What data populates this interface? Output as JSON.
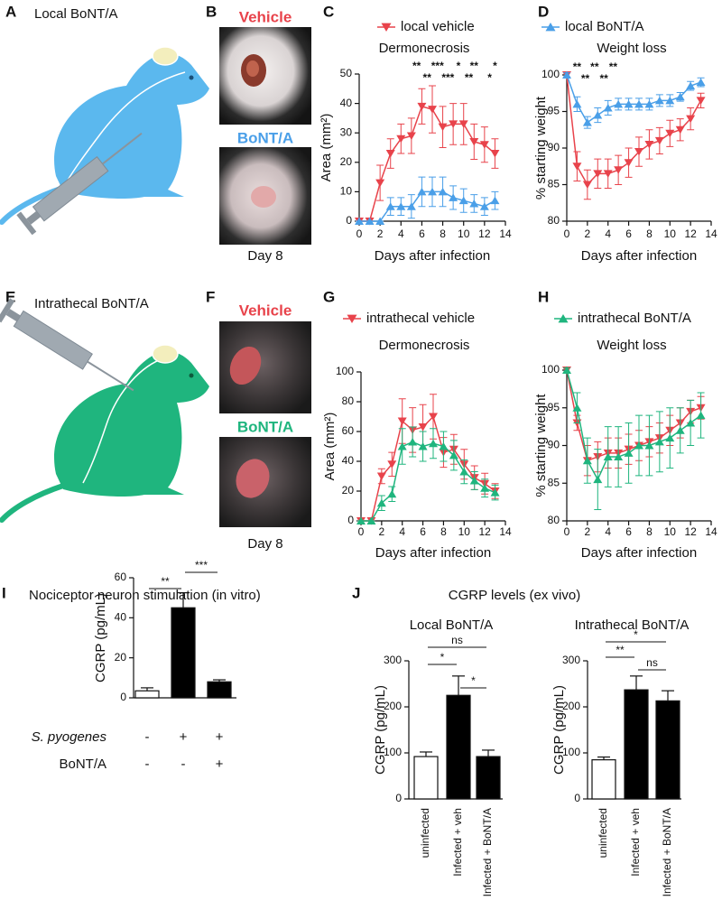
{
  "panel_labels": [
    "A",
    "B",
    "C",
    "D",
    "E",
    "F",
    "G",
    "H",
    "I",
    "J"
  ],
  "schematics": [
    {
      "title": "Local BoNT/A"
    },
    {
      "title": "Intrathecal BoNT/A"
    }
  ],
  "photos": [
    {
      "top": "Vehicle",
      "bottom": "BoNT/A",
      "caption": "Day 8"
    },
    {
      "top": "Vehicle",
      "bottom": "BoNT/A",
      "caption": "Day 8"
    }
  ],
  "j_title": "CGRP levels (ex vivo)",
  "chart_data": [
    {
      "type": "line",
      "title": "Dermonecrosis",
      "xlabel": "Days after infection",
      "ylabel": "Area (mm²)",
      "x": [
        0,
        1,
        2,
        3,
        4,
        5,
        6,
        7,
        8,
        9,
        10,
        11,
        12,
        13
      ],
      "xlim": [
        0,
        14
      ],
      "xticks": [
        0,
        2,
        4,
        6,
        8,
        10,
        12,
        14
      ],
      "ylim": [
        0,
        50
      ],
      "yticks": [
        0,
        10,
        20,
        30,
        40,
        50
      ],
      "series": [
        {
          "name": "local vehicle",
          "color": "#e8434b",
          "marker": "triangle-down",
          "values": [
            0,
            0,
            13,
            23,
            28,
            29,
            39,
            38,
            32,
            33,
            33,
            27,
            26,
            23
          ],
          "errors": [
            1,
            1,
            6,
            5,
            5,
            6,
            6,
            8,
            7,
            7,
            7,
            6,
            6,
            5
          ]
        },
        {
          "color": "#4a9fe8",
          "marker": "triangle-up",
          "values": [
            0,
            0,
            0,
            5,
            5,
            5,
            10,
            10,
            10,
            8,
            7,
            6,
            5,
            7
          ],
          "errors": [
            0,
            0,
            0,
            3,
            3,
            4,
            5,
            5,
            5,
            4,
            4,
            3,
            3,
            3
          ]
        }
      ],
      "annotations": [
        {
          "x": 5.5,
          "y": 52.5,
          "text": "**"
        },
        {
          "x": 7.5,
          "y": 52.5,
          "text": "***"
        },
        {
          "x": 9.5,
          "y": 52.5,
          "text": "*"
        },
        {
          "x": 11,
          "y": 52.5,
          "text": "**"
        },
        {
          "x": 13,
          "y": 52.5,
          "text": "*"
        },
        {
          "x": 6.5,
          "y": 48.5,
          "text": "**"
        },
        {
          "x": 8.5,
          "y": 48.5,
          "text": "***"
        },
        {
          "x": 10.5,
          "y": 48.5,
          "text": "**"
        },
        {
          "x": 12.5,
          "y": 48.5,
          "text": "*"
        }
      ]
    },
    {
      "type": "line",
      "title": "Weight loss",
      "xlabel": "Days after infection",
      "ylabel": "% starting weight",
      "x": [
        0,
        1,
        2,
        3,
        4,
        5,
        6,
        7,
        8,
        9,
        10,
        11,
        12,
        13
      ],
      "xlim": [
        0,
        14
      ],
      "xticks": [
        0,
        2,
        4,
        6,
        8,
        10,
        12,
        14
      ],
      "ylim": [
        80,
        100
      ],
      "yticks": [
        80,
        85,
        90,
        95,
        100
      ],
      "series": [
        {
          "color": "#e8434b",
          "marker": "triangle-down",
          "values": [
            100,
            87.5,
            85,
            86.5,
            86.5,
            87,
            88,
            89.5,
            90.5,
            91,
            92,
            92.5,
            94,
            96.5
          ],
          "errors": [
            0.3,
            2,
            2,
            2,
            2,
            2,
            2,
            2,
            2,
            1.8,
            1.8,
            1.5,
            1.5,
            1
          ]
        },
        {
          "name": "local BoNT/A",
          "color": "#4a9fe8",
          "marker": "triangle-up",
          "values": [
            100,
            96,
            93.5,
            94.5,
            95.5,
            96,
            96,
            96,
            96,
            96.5,
            96.5,
            97,
            98.5,
            99
          ],
          "errors": [
            0.3,
            1,
            0.8,
            1,
            1,
            0.8,
            0.8,
            0.8,
            0.8,
            0.8,
            0.8,
            0.6,
            0.6,
            0.6
          ]
        }
      ],
      "annotations": [
        {
          "x": 1,
          "y": 101,
          "text": "**"
        },
        {
          "x": 2.7,
          "y": 101,
          "text": "**"
        },
        {
          "x": 4.5,
          "y": 101,
          "text": "**"
        },
        {
          "x": 1.8,
          "y": 99.4,
          "text": "**"
        },
        {
          "x": 3.6,
          "y": 99.4,
          "text": "**"
        }
      ]
    },
    {
      "type": "line",
      "title": "Dermonecrosis",
      "xlabel": "Days after infection",
      "ylabel": "Area (mm²)",
      "x": [
        0,
        1,
        2,
        3,
        4,
        5,
        6,
        7,
        8,
        9,
        10,
        11,
        12,
        13
      ],
      "xlim": [
        0,
        14
      ],
      "xticks": [
        0,
        2,
        4,
        6,
        8,
        10,
        12,
        14
      ],
      "ylim": [
        0,
        100
      ],
      "yticks": [
        0,
        20,
        40,
        60,
        80,
        100
      ],
      "series": [
        {
          "name": "intrathecal vehicle",
          "color": "#e8434b",
          "marker": "triangle-down",
          "values": [
            0,
            0,
            30,
            38,
            67,
            61,
            63,
            70,
            46,
            48,
            38,
            29,
            25,
            20
          ],
          "errors": [
            0,
            0,
            5,
            8,
            15,
            15,
            15,
            15,
            10,
            10,
            10,
            8,
            7,
            5
          ]
        },
        {
          "color": "#1fb57e",
          "marker": "triangle-up",
          "values": [
            0,
            0,
            12,
            18,
            50,
            53,
            50,
            52,
            50,
            44,
            33,
            27,
            22,
            19
          ],
          "errors": [
            0,
            0,
            5,
            5,
            12,
            10,
            10,
            10,
            10,
            10,
            8,
            6,
            6,
            5
          ]
        }
      ],
      "annotations": []
    },
    {
      "type": "line",
      "title": "Weight loss",
      "xlabel": "Days after infection",
      "ylabel": "% starting weight",
      "x": [
        0,
        1,
        2,
        3,
        4,
        5,
        6,
        7,
        8,
        9,
        10,
        11,
        12,
        13
      ],
      "xlim": [
        0,
        14
      ],
      "xticks": [
        0,
        2,
        4,
        6,
        8,
        10,
        12,
        14
      ],
      "ylim": [
        80,
        100
      ],
      "yticks": [
        80,
        85,
        90,
        95,
        100
      ],
      "series": [
        {
          "color": "#e8434b",
          "marker": "triangle-down",
          "values": [
            100,
            93,
            88,
            88.5,
            89,
            89,
            89.5,
            90,
            90.5,
            91,
            92,
            93,
            94.5,
            95
          ],
          "errors": [
            0.3,
            1,
            2,
            2,
            2,
            2,
            2,
            2,
            2,
            2,
            2,
            2,
            1.5,
            1.5
          ]
        },
        {
          "name": "intrathecal BoNT/A",
          "color": "#1fb57e",
          "marker": "triangle-up",
          "values": [
            100,
            95,
            88,
            85.5,
            88.5,
            88.5,
            89,
            90,
            90,
            90.5,
            91,
            92,
            93,
            94
          ],
          "errors": [
            0.3,
            2,
            3,
            4,
            4,
            4,
            4,
            4,
            4,
            4,
            4,
            3,
            3,
            3
          ]
        }
      ],
      "annotations": []
    },
    {
      "type": "bar",
      "title": "Nociceptor neuron stimulation (in vitro)",
      "ylabel": "CGRP (pg/mL)",
      "ylim": [
        0,
        60
      ],
      "yticks": [
        0,
        20,
        40,
        60
      ],
      "categories": [
        null,
        null,
        null
      ],
      "values": [
        3.5,
        45,
        8
      ],
      "errors": [
        1.5,
        7.5,
        1
      ],
      "colors": [
        "#ffffff",
        "#000000",
        "#000000"
      ],
      "comparisons": [
        {
          "from": 0,
          "to": 1,
          "label": "**"
        },
        {
          "from": 1,
          "to": 2,
          "label": "***"
        }
      ],
      "conditions": [
        {
          "label": "S. pyogenes",
          "italic": true,
          "marks": [
            "-",
            "+",
            "+"
          ]
        },
        {
          "label": "BoNT/A",
          "italic": false,
          "marks": [
            "-",
            "-",
            "+"
          ]
        }
      ]
    },
    {
      "type": "bar",
      "title": "Local BoNT/A",
      "ylabel": "CGRP (pg/mL)",
      "ylim": [
        0,
        300
      ],
      "yticks": [
        0,
        100,
        200,
        300
      ],
      "categories": [
        "uninfected",
        "Infected + veh",
        "Infected + BoNT/A"
      ],
      "values": [
        92,
        225,
        92
      ],
      "errors": [
        10,
        42,
        14
      ],
      "colors": [
        "#ffffff",
        "#000000",
        "#000000"
      ],
      "comparisons": [
        {
          "from": 0,
          "to": 2,
          "label": "ns"
        },
        {
          "from": 0,
          "to": 1,
          "label": "*"
        },
        {
          "from": 1,
          "to": 2,
          "label": "*"
        }
      ]
    },
    {
      "type": "bar",
      "title": "Intrathecal BoNT/A",
      "ylabel": "CGRP (pg/mL)",
      "ylim": [
        0,
        300
      ],
      "yticks": [
        0,
        100,
        200,
        300
      ],
      "categories": [
        "uninfected",
        "Infected + veh",
        "Infected + BoNT/A"
      ],
      "values": [
        85,
        237,
        213
      ],
      "errors": [
        6,
        30,
        22
      ],
      "colors": [
        "#ffffff",
        "#000000",
        "#000000"
      ],
      "comparisons": [
        {
          "from": 0,
          "to": 2,
          "label": "*"
        },
        {
          "from": 0,
          "to": 1,
          "label": "**"
        },
        {
          "from": 1,
          "to": 2,
          "label": "ns"
        }
      ]
    }
  ]
}
